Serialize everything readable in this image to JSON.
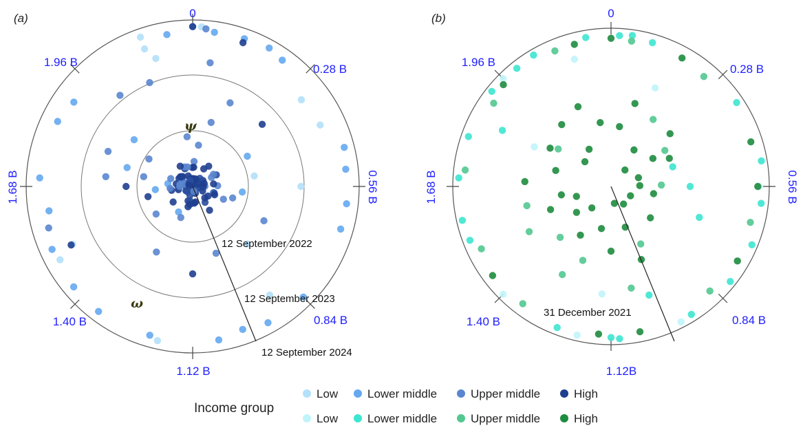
{
  "chart_data": [
    {
      "type": "scatter",
      "panel": "(a)",
      "coordinate_system": "polar",
      "angular_ticks": [
        "0",
        "0.28 B",
        "0.56 B",
        "0.84 B",
        "1.12 B",
        "1.40 B",
        "1.68 B",
        "1.96 B"
      ],
      "radial_labels": [
        "12 September 2022",
        "12 September 2023",
        "12 September 2024"
      ],
      "annotations": [
        "ψ",
        "ω"
      ],
      "colors": {
        "Low": "#b3e0fa",
        "Lower middle": "#64a9ef",
        "Upper middle": "#5a86cf",
        "High": "#1f3f8f"
      },
      "series": [
        {
          "name": "Low",
          "points": [
            [
              0.02,
              1.92
            ],
            [
              2.12,
              1.9
            ],
            [
              0.4,
              1.7
            ],
            [
              0.32,
              1.67
            ],
            [
              1.2,
              1.9
            ],
            [
              1.5,
              1.82
            ],
            [
              0.85,
              0.95
            ],
            [
              0.56,
              1.3
            ],
            [
              0.5,
              0.75
            ],
            [
              2.12,
              1.75
            ],
            [
              2.14,
              1.6
            ],
            [
              1.52,
              1.6
            ],
            [
              0.9,
              1.6
            ]
          ]
        },
        {
          "name": "Lower middle",
          "points": [
            [
              0.0,
              1.92
            ],
            [
              0.05,
              1.87
            ],
            [
              0.12,
              1.88
            ],
            [
              0.18,
              1.9
            ],
            [
              0.22,
              1.86
            ],
            [
              2.18,
              1.85
            ],
            [
              0.47,
              1.88
            ],
            [
              0.6,
              1.86
            ],
            [
              0.66,
              1.85
            ],
            [
              0.84,
              1.88
            ],
            [
              0.94,
              1.87
            ],
            [
              1.0,
              1.82
            ],
            [
              1.06,
              1.87
            ],
            [
              1.22,
              1.86
            ],
            [
              1.35,
              1.88
            ],
            [
              1.43,
              1.87
            ],
            [
              1.53,
              1.85
            ],
            [
              1.62,
              1.75
            ],
            [
              1.7,
              1.84
            ],
            [
              1.84,
              1.8
            ],
            [
              1.9,
              1.75
            ],
            [
              0.38,
              0.75
            ],
            [
              1.78,
              0.82
            ],
            [
              1.65,
              0.45
            ],
            [
              0.6,
              0.6
            ],
            [
              1.3,
              0.35
            ],
            [
              1.92,
              0.9
            ],
            [
              0.52,
              1.85
            ],
            [
              1.72,
              0.3
            ]
          ]
        },
        {
          "name": "Upper middle",
          "points": [
            [
              0.03,
              1.9
            ],
            [
              2.1,
              1.35
            ],
            [
              0.15,
              1.1
            ],
            [
              1.82,
              1.1
            ],
            [
              2.0,
              1.4
            ],
            [
              1.72,
              1.05
            ],
            [
              0.72,
              0.95
            ],
            [
              1.0,
              0.85
            ],
            [
              0.55,
              0.3
            ],
            [
              0.1,
              0.8
            ],
            [
              1.75,
              0.6
            ],
            [
              0.66,
              0.5
            ],
            [
              1.25,
              0.4
            ],
            [
              1.45,
              0.55
            ],
            [
              1.3,
              0.9
            ],
            [
              1.1,
              0.2
            ],
            [
              0.4,
              0.25
            ],
            [
              1.88,
              0.62
            ],
            [
              0.05,
              1.5
            ],
            [
              0.7,
              0.4
            ],
            [
              1.58,
              1.8
            ],
            [
              0.05,
              0.5
            ],
            [
              0.02,
              0.3
            ],
            [
              2.2,
              0.6
            ]
          ]
        },
        {
          "name": "High",
          "points": [
            [
              0.0,
              1.92
            ],
            [
              0.12,
              1.83
            ],
            [
              0.3,
              1.12
            ],
            [
              1.12,
              1.05
            ],
            [
              1.52,
              1.62
            ],
            [
              1.68,
              0.8
            ],
            [
              1.2,
              0.25
            ],
            [
              0.2,
              0.25
            ],
            [
              0.9,
              0.35
            ],
            [
              1.44,
              0.3
            ],
            [
              1.6,
              0.55
            ]
          ]
        }
      ],
      "center_cluster": "dense cluster of points near the origin"
    },
    {
      "type": "scatter",
      "panel": "(b)",
      "coordinate_system": "polar",
      "angular_ticks": [
        "0",
        "0.28 B",
        "0.56 B",
        "0.84 B",
        "1.12B",
        "1.40 B",
        "1.68 B",
        "1.96 B"
      ],
      "radial_labels": [
        "31 December 2021"
      ],
      "colors": {
        "Low": "#c0f4fb",
        "Lower middle": "#3de6d0",
        "Upper middle": "#52c890",
        "High": "#1e8c3e"
      },
      "series": [
        {
          "name": "Low",
          "points": [
            [
              2.14,
              0.92
            ],
            [
              1.96,
              1.06
            ],
            [
              0.95,
              1.06
            ],
            [
              1.2,
              1.06
            ],
            [
              0.15,
              0.75
            ],
            [
              1.4,
              1.06
            ],
            [
              0.56,
              1.03
            ],
            [
              1.15,
              0.75
            ],
            [
              1.85,
              0.6
            ]
          ]
        },
        {
          "name": "Lower middle",
          "points": [
            [
              0.02,
              1.05
            ],
            [
              0.05,
              1.06
            ],
            [
              0.1,
              1.04
            ],
            [
              2.18,
              1.05
            ],
            [
              2.05,
              1.06
            ],
            [
              0.35,
              1.05
            ],
            [
              0.5,
              1.06
            ],
            [
              0.6,
              1.05
            ],
            [
              0.7,
              1.06
            ],
            [
              0.8,
              1.06
            ],
            [
              0.92,
              1.05
            ],
            [
              1.1,
              1.06
            ],
            [
              1.12,
              1.05
            ],
            [
              1.25,
              1.05
            ],
            [
              1.55,
              1.05
            ],
            [
              1.6,
              1.06
            ],
            [
              1.7,
              1.06
            ],
            [
              1.8,
              1.05
            ],
            [
              1.92,
              1.06
            ],
            [
              2.0,
              1.05
            ],
            [
              0.56,
              0.55
            ],
            [
              0.68,
              0.65
            ],
            [
              0.45,
              0.45
            ],
            [
              1.0,
              0.8
            ],
            [
              1.85,
              0.85
            ]
          ]
        },
        {
          "name": "Upper middle",
          "points": [
            [
              0.05,
              1.02
            ],
            [
              0.25,
              1.0
            ],
            [
              0.65,
              1.0
            ],
            [
              0.85,
              1.0
            ],
            [
              1.35,
              1.02
            ],
            [
              1.52,
              1.0
            ],
            [
              1.72,
              1.02
            ],
            [
              1.9,
              1.0
            ],
            [
              2.1,
              1.02
            ],
            [
              0.2,
              0.55
            ],
            [
              1.6,
              0.6
            ],
            [
              1.4,
              0.5
            ],
            [
              0.35,
              0.45
            ],
            [
              1.3,
              0.7
            ],
            [
              1.9,
              0.45
            ],
            [
              1.5,
              0.65
            ],
            [
              0.95,
              0.45
            ],
            [
              1.25,
              0.55
            ],
            [
              0.55,
              0.35
            ],
            [
              1.05,
              0.72
            ]
          ]
        },
        {
          "name": "High",
          "points": [
            [
              0.0,
              1.03
            ],
            [
              0.18,
              1.02
            ],
            [
              0.45,
              1.02
            ],
            [
              0.56,
              1.02
            ],
            [
              0.75,
              1.02
            ],
            [
              1.05,
              1.03
            ],
            [
              1.15,
              1.03
            ],
            [
              1.45,
              1.03
            ],
            [
              1.95,
              1.03
            ],
            [
              2.15,
              1.02
            ],
            [
              0.05,
              0.42
            ],
            [
              0.2,
              0.3
            ],
            [
              0.35,
              0.35
            ],
            [
              0.45,
              0.2
            ],
            [
              0.62,
              0.3
            ],
            [
              0.8,
              0.35
            ],
            [
              1.0,
              0.3
            ],
            [
              1.12,
              0.45
            ],
            [
              1.2,
              0.3
            ],
            [
              1.32,
              0.4
            ],
            [
              1.45,
              0.3
            ],
            [
              1.62,
              0.35
            ],
            [
              1.78,
              0.4
            ],
            [
              1.88,
              0.5
            ],
            [
              2.0,
              0.55
            ],
            [
              2.1,
              0.6
            ],
            [
              2.18,
              0.45
            ],
            [
              0.1,
              0.6
            ],
            [
              0.3,
              0.55
            ],
            [
              0.55,
              0.2
            ],
            [
              0.72,
              0.15
            ],
            [
              0.9,
              0.15
            ],
            [
              1.05,
              0.12
            ],
            [
              1.38,
              0.2
            ],
            [
              1.58,
              0.25
            ],
            [
              1.7,
              0.6
            ],
            [
              1.95,
              0.25
            ],
            [
              2.05,
              0.3
            ],
            [
              0.25,
              0.15
            ],
            [
              0.4,
              0.45
            ],
            [
              0.98,
              0.55
            ],
            [
              1.55,
              0.45
            ]
          ]
        }
      ]
    }
  ],
  "legend": {
    "title": "Income group",
    "row1": [
      {
        "label": "Low",
        "color": "#b3e0fa"
      },
      {
        "label": "Lower middle",
        "color": "#64a9ef"
      },
      {
        "label": "Upper middle",
        "color": "#5a86cf"
      },
      {
        "label": "High",
        "color": "#1f3f8f"
      }
    ],
    "row2": [
      {
        "label": "Low",
        "color": "#c0f4fb"
      },
      {
        "label": "Lower middle",
        "color": "#3de6d0"
      },
      {
        "label": "Upper middle",
        "color": "#52c890"
      },
      {
        "label": "High",
        "color": "#1e8c3e"
      }
    ]
  },
  "panel_labels": [
    "(a)",
    "(b)"
  ]
}
